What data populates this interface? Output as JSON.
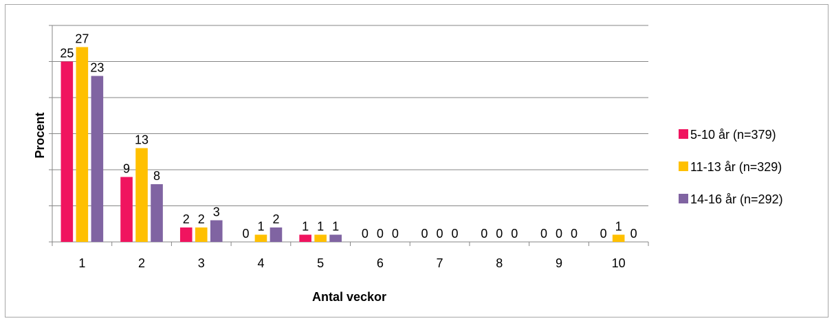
{
  "chart_data": {
    "type": "bar",
    "title": "",
    "xlabel": "Antal veckor",
    "ylabel": "Procent",
    "categories": [
      "1",
      "2",
      "3",
      "4",
      "5",
      "6",
      "7",
      "8",
      "9",
      "10"
    ],
    "series": [
      {
        "name": "5-10 år (n=379)",
        "color": "#f0145f",
        "values": [
          25,
          9,
          2,
          0,
          1,
          0,
          0,
          0,
          0,
          0
        ]
      },
      {
        "name": "11-13 år (n=329)",
        "color": "#ffc000",
        "values": [
          27,
          13,
          2,
          1,
          1,
          0,
          0,
          0,
          0,
          1
        ]
      },
      {
        "name": "14-16 år (n=292)",
        "color": "#8064a2",
        "values": [
          23,
          8,
          3,
          2,
          1,
          0,
          0,
          0,
          0,
          0
        ]
      }
    ],
    "data_labels": [
      [
        "25",
        "9",
        "2",
        "0",
        "1",
        "0",
        "0",
        "0",
        "0",
        "0"
      ],
      [
        "27",
        "13",
        "2",
        "1",
        "1",
        "0",
        "0",
        "0",
        "0",
        "1"
      ],
      [
        "23",
        "8",
        "3",
        "2",
        "1",
        "0",
        "0",
        "0",
        "0",
        "0"
      ]
    ],
    "ylim": [
      0,
      30
    ],
    "y_ticks_labeled": false,
    "grid": true,
    "legend_position": "right"
  }
}
